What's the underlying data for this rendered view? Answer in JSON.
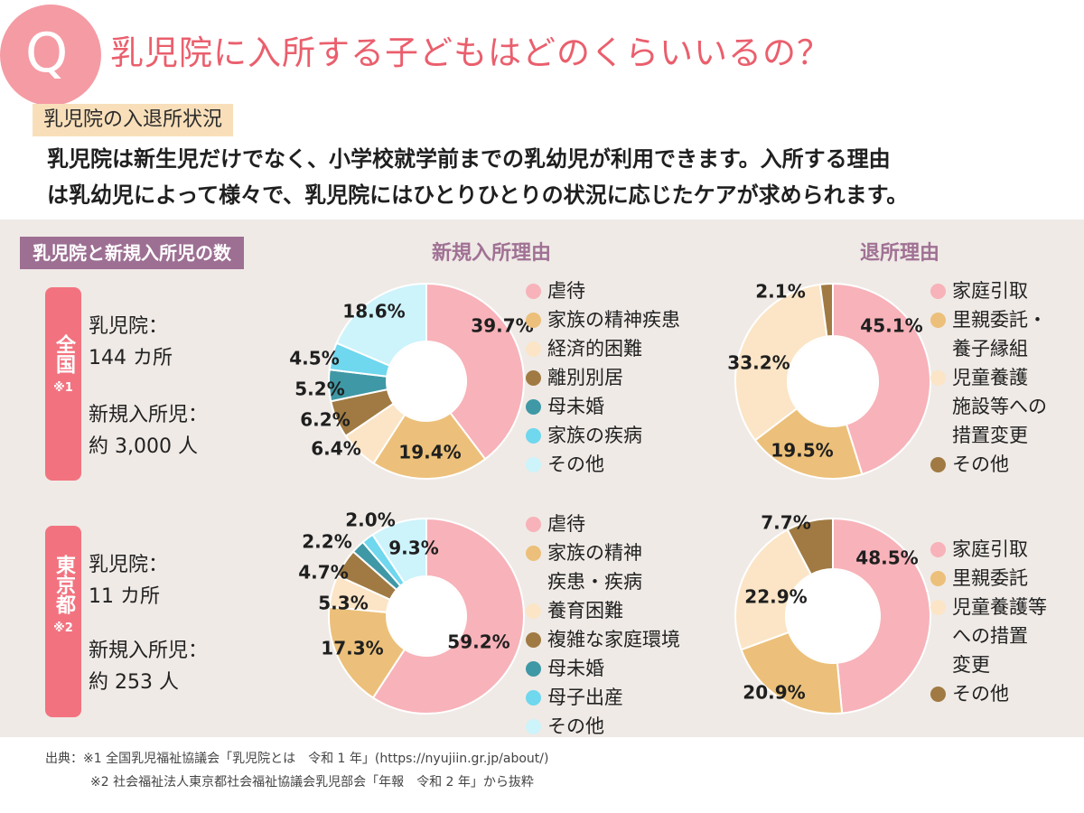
{
  "header": {
    "badge_letter": "Q",
    "title": "乳児院に入所する子どもはどのくらいいるの？",
    "status_tag": "乳児院の入退所状況",
    "lead_line1": "乳児院は新生児だけでなく、小学校就学前までの乳幼児が利用できます。入所する理由",
    "lead_line2": "は乳幼児によって様々で、乳児院にはひとりひとりの状況に応じたケアが求められます。"
  },
  "panel": {
    "tag": "乳児院と新規入所児の数",
    "col_admission": "新規入所理由",
    "col_discharge": "退所理由"
  },
  "regions": [
    {
      "name": "全国",
      "note": "※1",
      "stat1_label": "乳児院：",
      "stat1_value": "144 カ所",
      "stat2_label": "新規入所児：",
      "stat2_value": "約 3,000 人"
    },
    {
      "name": "東京都",
      "note": "※2",
      "stat1_label": "乳児院：",
      "stat1_value": "11 カ所",
      "stat2_label": "新規入所児：",
      "stat2_value": "約 253 人"
    }
  ],
  "colors": {
    "pink": "#f8b2b9",
    "orange": "#ecc07a",
    "cream": "#fbe5c6",
    "brown": "#a07a42",
    "teal": "#3f98a5",
    "cyan": "#6fd7ee",
    "lightcyan": "#cdf3fb",
    "accent": "#f2737f",
    "purple": "#9d6f93"
  },
  "chart_data": [
    {
      "type": "pie",
      "title": "新規入所理由",
      "region": "全国",
      "categories": [
        "虐待",
        "家族の精神疾患",
        "経済的困難",
        "離別別居",
        "母未婚",
        "家族の疾病",
        "その他"
      ],
      "values": [
        39.7,
        19.4,
        6.4,
        6.2,
        5.2,
        4.5,
        18.6
      ],
      "labels": [
        "39.7%",
        "19.4%",
        "6.4%",
        "6.2%",
        "5.2%",
        "4.5%",
        "18.6%"
      ],
      "colors": [
        "#f8b2b9",
        "#ecc07a",
        "#fbe5c6",
        "#a07a42",
        "#3f98a5",
        "#6fd7ee",
        "#cdf3fb"
      ],
      "legend": [
        "虐待",
        "家族の精神疾患",
        "経済的困難",
        "離別別居",
        "母未婚",
        "家族の疾病",
        "その他"
      ]
    },
    {
      "type": "pie",
      "title": "退所理由",
      "region": "全国",
      "categories": [
        "家庭引取",
        "里親委託・養子縁組",
        "児童養護施設等への措置変更",
        "その他"
      ],
      "values": [
        45.1,
        19.5,
        33.2,
        2.1
      ],
      "labels": [
        "45.1%",
        "19.5%",
        "33.2%",
        "2.1%"
      ],
      "colors": [
        "#f8b2b9",
        "#ecc07a",
        "#fbe5c6",
        "#a07a42"
      ],
      "legend": [
        "家庭引取",
        "里親委託・\n養子縁組",
        "児童養護\n施設等への\n措置変更",
        "その他"
      ]
    },
    {
      "type": "pie",
      "title": "新規入所理由",
      "region": "東京都",
      "categories": [
        "虐待",
        "家族の精神疾患・疾病",
        "養育困難",
        "複雑な家庭環境",
        "母未婚",
        "母子出産",
        "その他"
      ],
      "values": [
        59.2,
        17.3,
        5.3,
        4.7,
        2.2,
        2.0,
        9.3
      ],
      "labels": [
        "59.2%",
        "17.3%",
        "5.3%",
        "4.7%",
        "2.2%",
        "2.0%",
        "9.3%"
      ],
      "colors": [
        "#f8b2b9",
        "#ecc07a",
        "#fbe5c6",
        "#a07a42",
        "#3f98a5",
        "#6fd7ee",
        "#cdf3fb"
      ],
      "legend": [
        "虐待",
        "家族の精神\n疾患・疾病",
        "養育困難",
        "複雑な家庭環境",
        "母未婚",
        "母子出産",
        "その他"
      ]
    },
    {
      "type": "pie",
      "title": "退所理由",
      "region": "東京都",
      "categories": [
        "家庭引取",
        "里親委託",
        "児童養護等への措置変更",
        "その他"
      ],
      "values": [
        48.5,
        20.9,
        22.9,
        7.7
      ],
      "labels": [
        "48.5%",
        "20.9%",
        "22.9%",
        "7.7%"
      ],
      "colors": [
        "#f8b2b9",
        "#ecc07a",
        "#fbe5c6",
        "#a07a42"
      ],
      "legend": [
        "家庭引取",
        "里親委託",
        "児童養護等\nへの措置\n変更",
        "その他"
      ]
    }
  ],
  "source": {
    "line1": "出典：※1 全国乳児福祉協議会「乳児院とは　令和 1 年」(https://nyujiin.gr.jp/about/)",
    "line2": "※2 社会福祉法人東京都社会福祉協議会乳児部会「年報　令和 2 年」から抜粋"
  }
}
